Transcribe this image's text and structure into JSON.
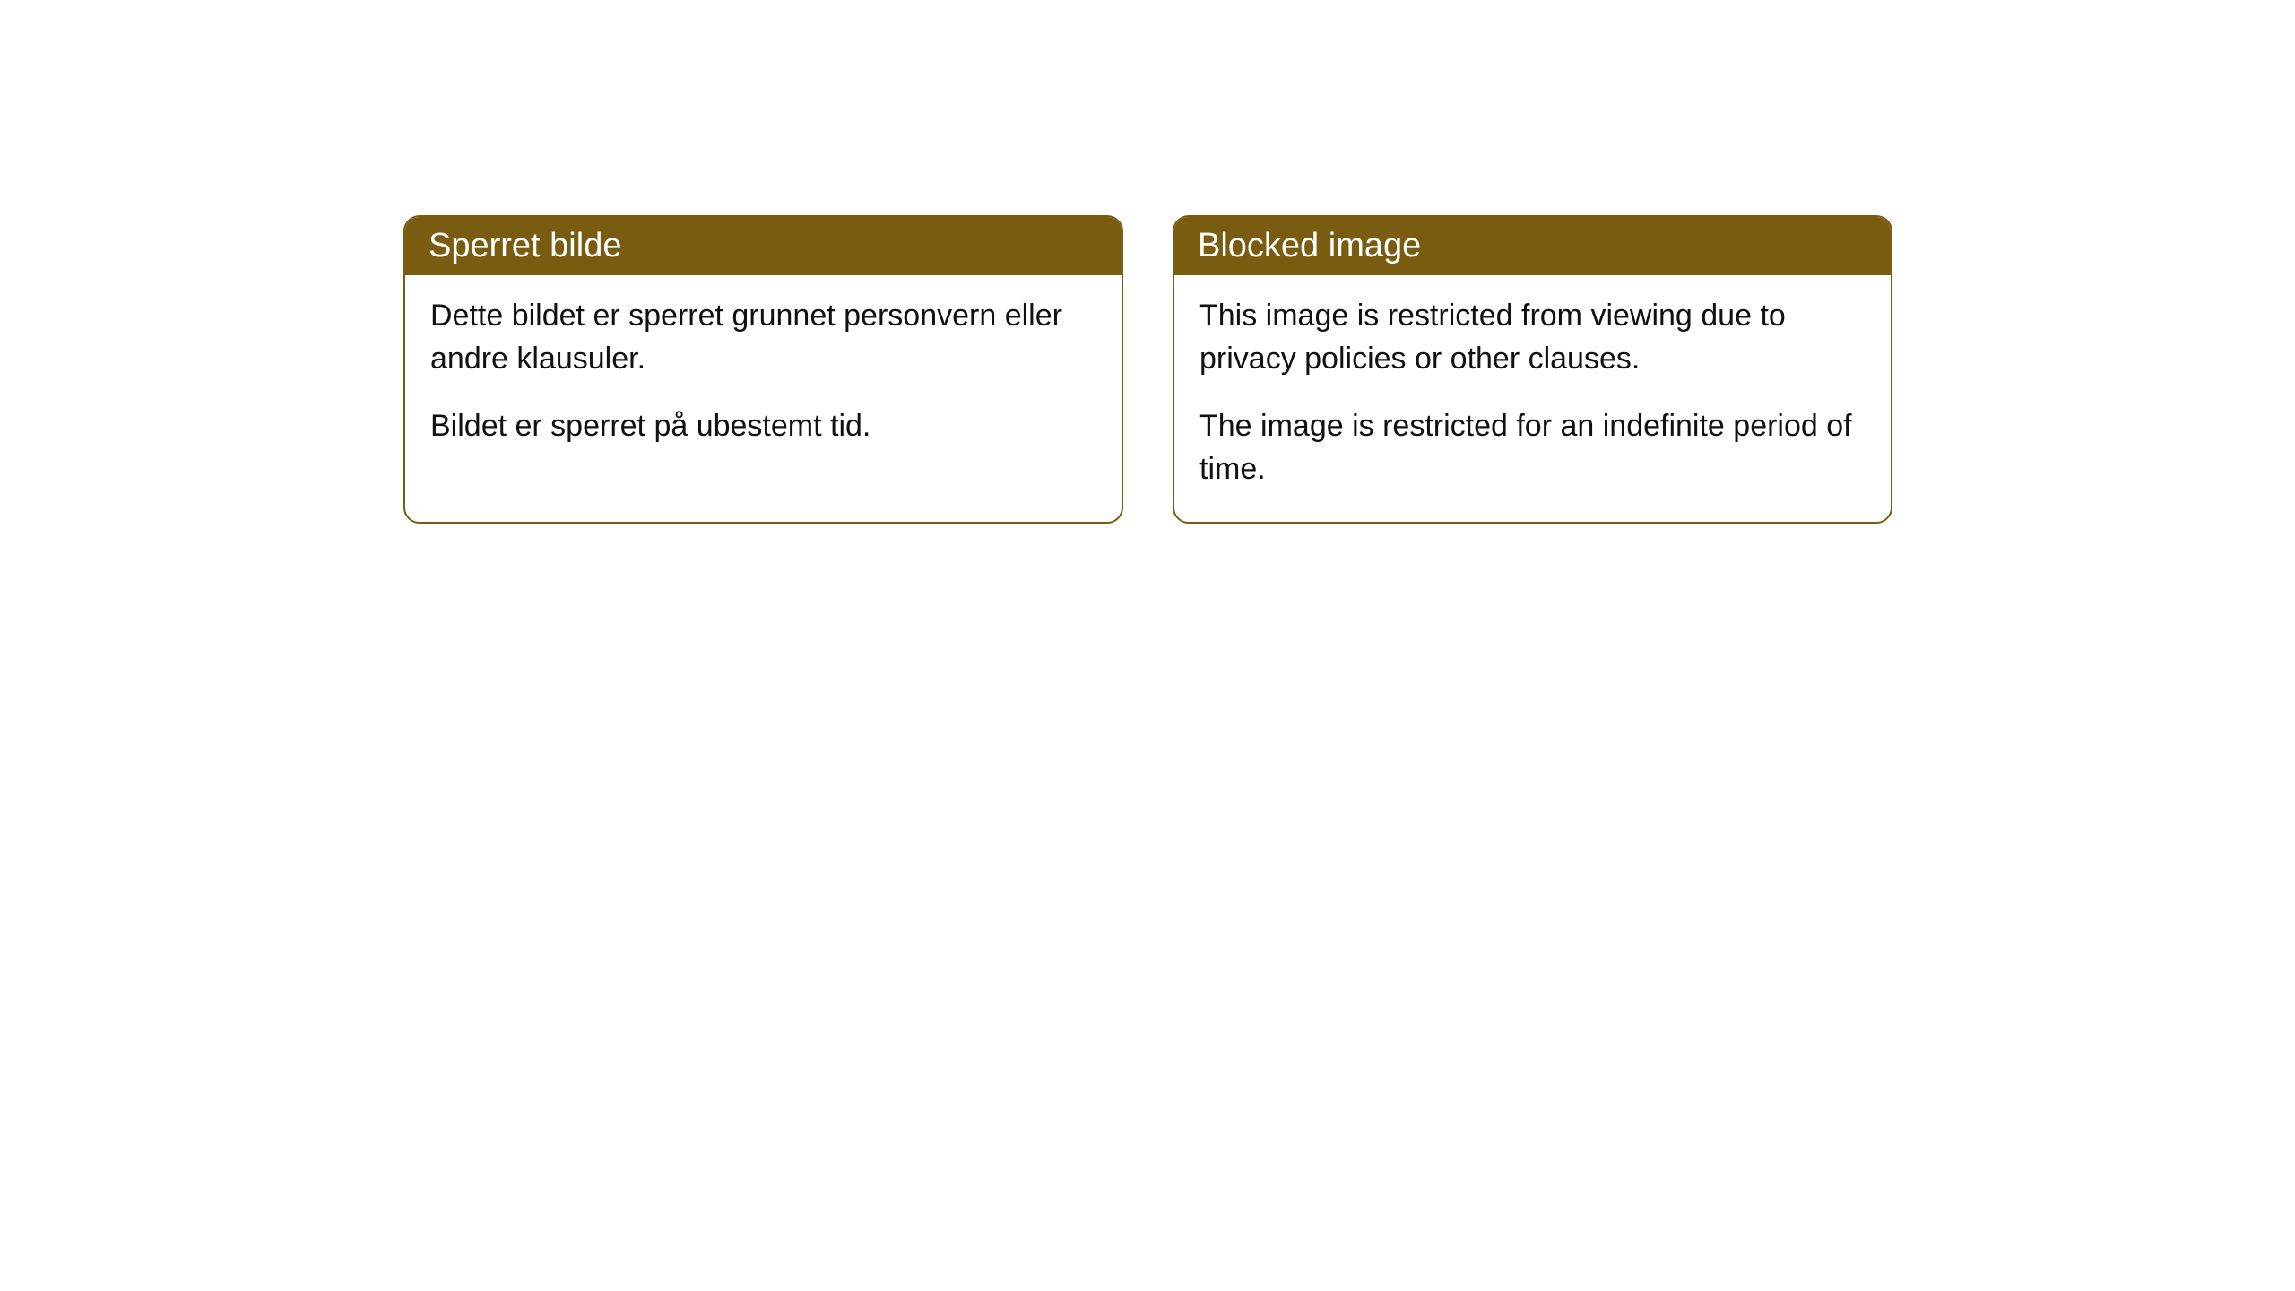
{
  "cards": [
    {
      "title": "Sperret bilde",
      "paragraph1": "Dette bildet er sperret grunnet personvern eller andre klausuler.",
      "paragraph2": "Bildet er sperret på ubestemt tid."
    },
    {
      "title": "Blocked image",
      "paragraph1": "This image is restricted from viewing due to privacy policies or other clauses.",
      "paragraph2": "The image is restricted for an indefinite period of time."
    }
  ],
  "styling": {
    "header_background": "#7a5c11",
    "header_text_color": "#ffffff",
    "border_color": "#7a5c11",
    "body_background": "#ffffff",
    "body_text_color": "#111111",
    "border_radius": 18,
    "header_fontsize": 38,
    "body_fontsize": 34
  }
}
